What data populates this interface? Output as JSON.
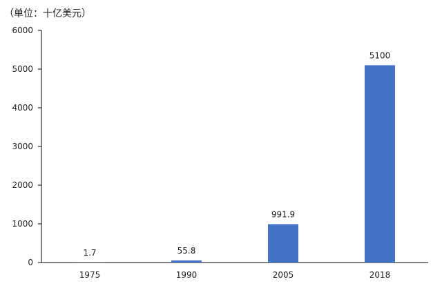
{
  "chart_data": {
    "type": "bar",
    "unit_label": "（单位：十亿美元）",
    "categories": [
      "1975",
      "1990",
      "2005",
      "2018"
    ],
    "values": [
      1.7,
      55.8,
      991.9,
      5100
    ],
    "data_labels": [
      "1.7",
      "55.8",
      "991.9",
      "5100"
    ],
    "ylim": [
      0,
      6000
    ],
    "yticks": [
      0,
      1000,
      2000,
      3000,
      4000,
      5000,
      6000
    ],
    "grid": false,
    "bar_color": "#4472C4"
  }
}
